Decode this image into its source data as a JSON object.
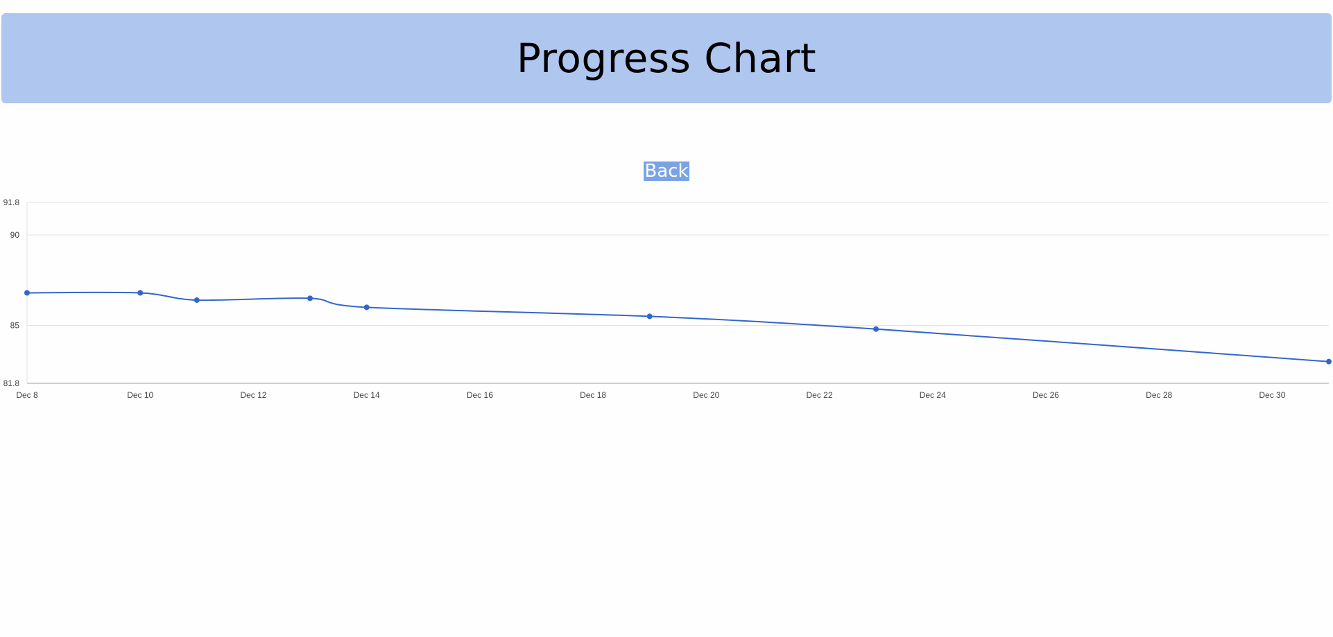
{
  "header": {
    "title": "Progress Chart"
  },
  "nav": {
    "back_label": "Back"
  },
  "colors": {
    "header_bg": "#afc6ee",
    "line": "#3366cc",
    "back_button_bg": "#7aa3e6"
  },
  "chart_data": {
    "type": "line",
    "title": "",
    "xlabel": "",
    "ylabel": "",
    "x_range": [
      "2023-12-08",
      "2023-12-31"
    ],
    "ylim": [
      81.8,
      91.8
    ],
    "y_ticks": [
      81.8,
      85,
      90,
      91.8
    ],
    "y_tick_labels": [
      "81.8",
      "85",
      "90",
      "91.8"
    ],
    "x_ticks": [
      "2023-12-08",
      "2023-12-10",
      "2023-12-12",
      "2023-12-14",
      "2023-12-16",
      "2023-12-18",
      "2023-12-20",
      "2023-12-22",
      "2023-12-24",
      "2023-12-26",
      "2023-12-28",
      "2023-12-30"
    ],
    "x_tick_labels": [
      "Dec 8",
      "Dec 10",
      "Dec 12",
      "Dec 14",
      "Dec 16",
      "Dec 18",
      "Dec 20",
      "Dec 22",
      "Dec 24",
      "Dec 26",
      "Dec 28",
      "Dec 30"
    ],
    "grid": true,
    "legend": "none",
    "series": [
      {
        "points": [
          {
            "x": "2023-12-08",
            "y": 86.8
          },
          {
            "x": "2023-12-10",
            "y": 86.8
          },
          {
            "x": "2023-12-11",
            "y": 86.4
          },
          {
            "x": "2023-12-13",
            "y": 86.5
          },
          {
            "x": "2023-12-14",
            "y": 86.0
          },
          {
            "x": "2023-12-19",
            "y": 85.5
          },
          {
            "x": "2023-12-23",
            "y": 84.8
          },
          {
            "x": "2023-12-31",
            "y": 83.0
          }
        ]
      }
    ]
  }
}
